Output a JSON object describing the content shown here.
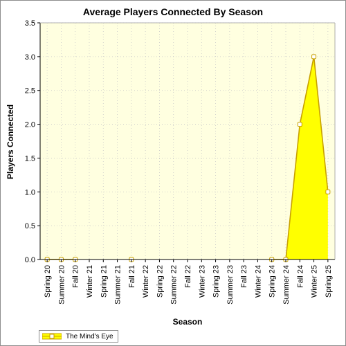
{
  "chart_data": {
    "type": "area",
    "title": "Average Players Connected By Season",
    "xlabel": "Season",
    "ylabel": "Players Connected",
    "categories": [
      "Spring 20",
      "Summer 20",
      "Fall 20",
      "Winter 21",
      "Spring 21",
      "Summer 21",
      "Fall 21",
      "Winter 22",
      "Spring 22",
      "Summer 22",
      "Fall 22",
      "Winter 23",
      "Spring 23",
      "Summer 23",
      "Fall 23",
      "Winter 24",
      "Spring 24",
      "Summer 24",
      "Fall 24",
      "Winter 25",
      "Spring 25"
    ],
    "series": [
      {
        "name": "The Mind's Eye",
        "values": [
          0,
          0,
          0,
          null,
          null,
          null,
          0,
          null,
          null,
          null,
          null,
          null,
          null,
          null,
          null,
          null,
          0,
          0,
          2,
          3,
          1
        ],
        "marker_indices": [
          0,
          1,
          2,
          6,
          16,
          17,
          18,
          19,
          20
        ]
      }
    ],
    "ylim": [
      0,
      3.5
    ],
    "yticks": [
      "0.0",
      "0.5",
      "1.0",
      "1.5",
      "2.0",
      "2.5",
      "3.0",
      "3.5"
    ],
    "grid": true,
    "legend_position": "bottom-left",
    "colors": {
      "fill": "#ffff00",
      "line": "#c8a000",
      "plot_bg": "#ffffe0",
      "grid": "#c8c8c8",
      "marker": "#ffffff"
    }
  }
}
